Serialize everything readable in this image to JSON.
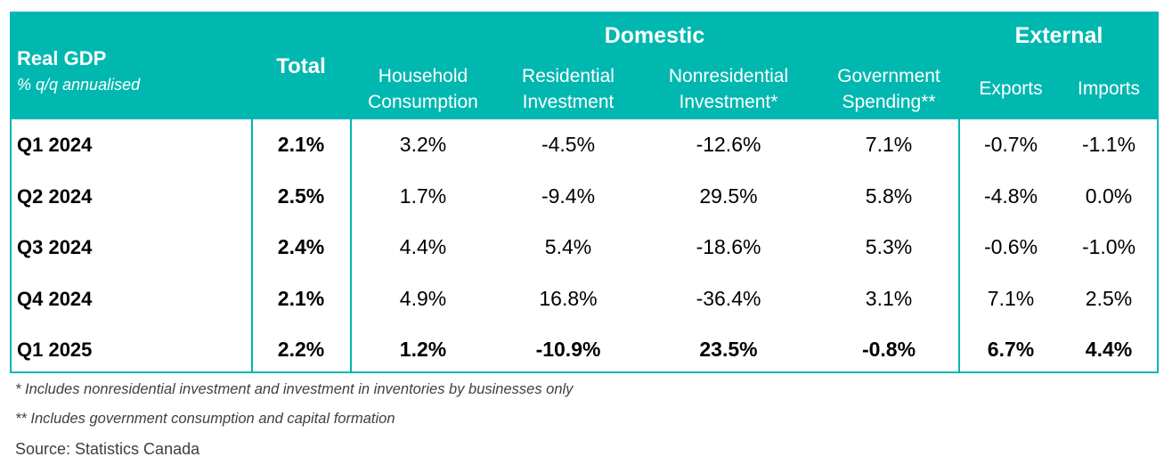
{
  "header": {
    "title": "Real GDP",
    "subtitle": "% q/q annualised",
    "total_label": "Total",
    "domestic_label": "Domestic",
    "external_label": "External",
    "columns": [
      {
        "line1": "Household",
        "line2": "Consumption"
      },
      {
        "line1": "Residential",
        "line2": "Investment"
      },
      {
        "line1": "Nonresidential",
        "line2": "Investment*"
      },
      {
        "line1": "Government",
        "line2": "Spending**"
      },
      {
        "line1": "Exports"
      },
      {
        "line1": "Imports"
      }
    ]
  },
  "rows": [
    {
      "label": "Q1 2024",
      "values": [
        "2.1%",
        "3.2%",
        "-4.5%",
        "-12.6%",
        "7.1%",
        "-0.7%",
        "-1.1%"
      ],
      "bold": false
    },
    {
      "label": "Q2 2024",
      "values": [
        "2.5%",
        "1.7%",
        "-9.4%",
        "29.5%",
        "5.8%",
        "-4.8%",
        "0.0%"
      ],
      "bold": false
    },
    {
      "label": "Q3 2024",
      "values": [
        "2.4%",
        "4.4%",
        "5.4%",
        "-18.6%",
        "5.3%",
        "-0.6%",
        "-1.0%"
      ],
      "bold": false
    },
    {
      "label": "Q4 2024",
      "values": [
        "2.1%",
        "4.9%",
        "16.8%",
        "-36.4%",
        "3.1%",
        "7.1%",
        "2.5%"
      ],
      "bold": false
    },
    {
      "label": "Q1 2025",
      "values": [
        "2.2%",
        "1.2%",
        "-10.9%",
        "23.5%",
        "-0.8%",
        "6.7%",
        "4.4%"
      ],
      "bold": true
    }
  ],
  "footnotes": [
    "* Includes nonresidential investment and investment in inventories by businesses only",
    "** Includes government consumption and capital formation"
  ],
  "source": "Source: Statistics Canada",
  "colors": {
    "header_bg": "#00b8b0",
    "header_text": "#ffffff",
    "border": "#00b8b0"
  }
}
